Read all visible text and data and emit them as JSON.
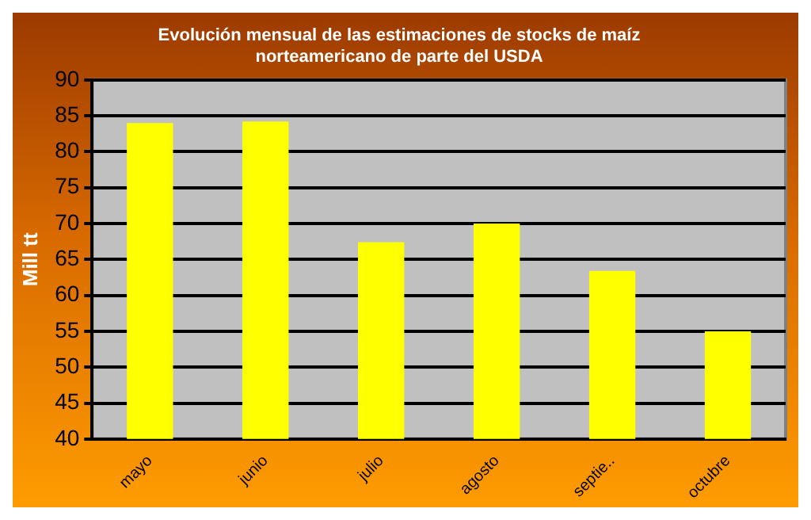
{
  "chart_data": {
    "type": "bar",
    "title": "Evolución mensual de las estimaciones de stocks de maíz\nnorteamericano de parte del USDA",
    "ylabel": "Mill tt",
    "categories": [
      "mayo",
      "junio",
      "julio",
      "agosto",
      "septie..",
      "octubre"
    ],
    "values": [
      84.0,
      84.2,
      67.4,
      70.0,
      63.4,
      55.0
    ],
    "color": "#ffff00",
    "ylim": [
      40,
      90
    ],
    "yticks": [
      40,
      45,
      50,
      55,
      60,
      65,
      70,
      75,
      80,
      85,
      90
    ],
    "grid": "y",
    "legend": false
  }
}
